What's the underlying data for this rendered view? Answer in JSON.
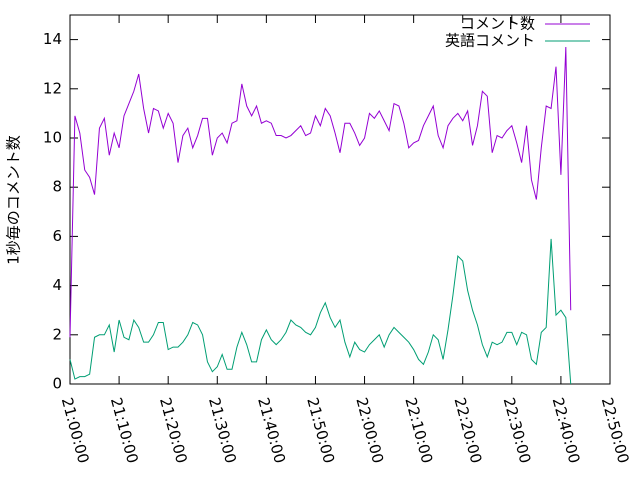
{
  "chart_data": {
    "type": "line",
    "ylabel": "1秒毎のコメント数",
    "x": [
      "21:00:00",
      "21:01:00",
      "21:02:00",
      "21:03:00",
      "21:04:00",
      "21:05:00",
      "21:06:00",
      "21:07:00",
      "21:08:00",
      "21:09:00",
      "21:10:00",
      "21:11:00",
      "21:12:00",
      "21:13:00",
      "21:14:00",
      "21:15:00",
      "21:16:00",
      "21:17:00",
      "21:18:00",
      "21:19:00",
      "21:20:00",
      "21:21:00",
      "21:22:00",
      "21:23:00",
      "21:24:00",
      "21:25:00",
      "21:26:00",
      "21:27:00",
      "21:28:00",
      "21:29:00",
      "21:30:00",
      "21:31:00",
      "21:32:00",
      "21:33:00",
      "21:34:00",
      "21:35:00",
      "21:36:00",
      "21:37:00",
      "21:38:00",
      "21:39:00",
      "21:40:00",
      "21:41:00",
      "21:42:00",
      "21:43:00",
      "21:44:00",
      "21:45:00",
      "21:46:00",
      "21:47:00",
      "21:48:00",
      "21:49:00",
      "21:50:00",
      "21:51:00",
      "21:52:00",
      "21:53:00",
      "21:54:00",
      "21:55:00",
      "21:56:00",
      "21:57:00",
      "21:58:00",
      "21:59:00",
      "22:00:00",
      "22:01:00",
      "22:02:00",
      "22:03:00",
      "22:04:00",
      "22:05:00",
      "22:06:00",
      "22:07:00",
      "22:08:00",
      "22:09:00",
      "22:10:00",
      "22:11:00",
      "22:12:00",
      "22:13:00",
      "22:14:00",
      "22:15:00",
      "22:16:00",
      "22:17:00",
      "22:18:00",
      "22:19:00",
      "22:20:00",
      "22:21:00",
      "22:22:00",
      "22:23:00",
      "22:24:00",
      "22:25:00",
      "22:26:00",
      "22:27:00",
      "22:28:00",
      "22:29:00",
      "22:30:00",
      "22:31:00",
      "22:32:00",
      "22:33:00",
      "22:34:00",
      "22:35:00",
      "22:36:00",
      "22:37:00",
      "22:38:00",
      "22:39:00",
      "22:40:00",
      "22:41:00",
      "22:42:00"
    ],
    "series": [
      {
        "name": "コメント数",
        "color": "#9400d3",
        "values": [
          1.9,
          10.9,
          10.2,
          8.7,
          8.4,
          7.7,
          10.4,
          10.8,
          9.3,
          10.2,
          9.6,
          10.9,
          11.4,
          11.9,
          12.6,
          11.2,
          10.2,
          11.2,
          11.1,
          10.4,
          11.0,
          10.6,
          9.0,
          10.1,
          10.4,
          9.6,
          10.1,
          10.8,
          10.8,
          9.3,
          10.0,
          10.2,
          9.8,
          10.6,
          10.7,
          12.2,
          11.3,
          10.9,
          11.3,
          10.6,
          10.7,
          10.6,
          10.1,
          10.1,
          10.0,
          10.1,
          10.3,
          10.5,
          10.1,
          10.2,
          10.9,
          10.5,
          11.2,
          10.9,
          10.2,
          9.4,
          10.6,
          10.6,
          10.2,
          9.7,
          10.0,
          11.0,
          10.8,
          11.1,
          10.7,
          10.3,
          11.4,
          11.3,
          10.6,
          9.6,
          9.8,
          9.9,
          10.5,
          10.9,
          11.3,
          10.1,
          9.6,
          10.5,
          10.8,
          11.0,
          10.7,
          11.1,
          9.7,
          10.5,
          11.9,
          11.7,
          9.4,
          10.1,
          10.0,
          10.3,
          10.5,
          9.8,
          9.0,
          10.5,
          8.3,
          7.5,
          9.6,
          11.3,
          11.2,
          12.9,
          8.5,
          13.7,
          3.0
        ]
      },
      {
        "name": "英語コメント",
        "color": "#009e73",
        "values": [
          1.0,
          0.2,
          0.3,
          0.3,
          0.4,
          1.9,
          2.0,
          2.0,
          2.4,
          1.3,
          2.6,
          1.9,
          1.8,
          2.6,
          2.3,
          1.7,
          1.7,
          2.0,
          2.5,
          2.5,
          1.4,
          1.5,
          1.5,
          1.7,
          2.0,
          2.5,
          2.4,
          2.0,
          0.9,
          0.5,
          0.7,
          1.2,
          0.6,
          0.6,
          1.5,
          2.1,
          1.6,
          0.9,
          0.9,
          1.8,
          2.2,
          1.8,
          1.6,
          1.8,
          2.1,
          2.6,
          2.4,
          2.3,
          2.1,
          2.0,
          2.3,
          2.9,
          3.3,
          2.7,
          2.3,
          2.6,
          1.7,
          1.1,
          1.7,
          1.4,
          1.3,
          1.6,
          1.8,
          2.0,
          1.5,
          2.0,
          2.3,
          2.1,
          1.9,
          1.7,
          1.4,
          1.0,
          0.8,
          1.3,
          2.0,
          1.8,
          1.0,
          2.2,
          3.6,
          5.2,
          5.0,
          3.8,
          3.0,
          2.4,
          1.6,
          1.1,
          1.7,
          1.6,
          1.7,
          2.1,
          2.1,
          1.6,
          2.1,
          2.0,
          1.0,
          0.8,
          2.1,
          2.3,
          5.9,
          2.8,
          3.0,
          2.7,
          0.0
        ]
      }
    ],
    "xlim": [
      "21:00:00",
      "22:50:00"
    ],
    "xticks": [
      "21:00:00",
      "21:10:00",
      "21:20:00",
      "21:30:00",
      "21:40:00",
      "21:50:00",
      "22:00:00",
      "22:10:00",
      "22:20:00",
      "22:30:00",
      "22:40:00",
      "22:50:00"
    ],
    "ylim": [
      0,
      15
    ],
    "yticks": [
      0,
      2,
      4,
      6,
      8,
      10,
      12,
      14
    ],
    "legend": "top right"
  }
}
